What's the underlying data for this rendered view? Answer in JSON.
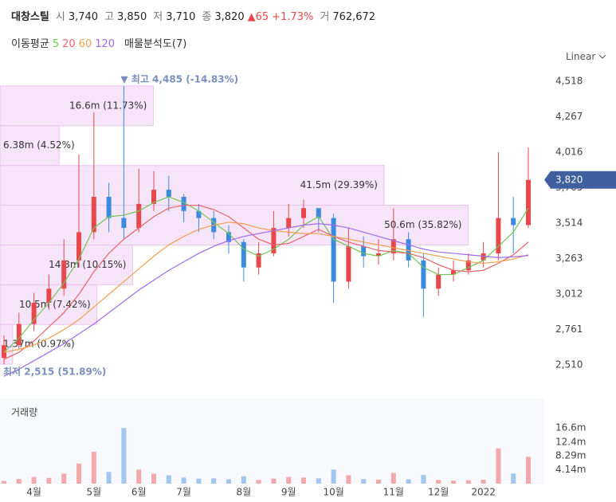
{
  "header": {
    "name": "대창스틸",
    "open_label": "시",
    "open": "3,740",
    "high_label": "고",
    "high": "3,850",
    "low_label": "저",
    "low": "3,710",
    "close_label": "종",
    "close": "3,820",
    "change": "▲65",
    "change_pct": "+1.73%",
    "volume_label": "거",
    "volume": "762,672",
    "ma_label": "이동평균",
    "profile_label": "매물분석도(7)",
    "scale": "Linear"
  },
  "chart_data": {
    "type": "candlestick",
    "categories": [
      null,
      null,
      "4월",
      null,
      null,
      null,
      "5월",
      null,
      null,
      "6월",
      null,
      null,
      "7월",
      null,
      null,
      null,
      "8월",
      null,
      null,
      "9월",
      null,
      null,
      "10월",
      null,
      null,
      null,
      "11월",
      null,
      null,
      "12월",
      null,
      null,
      "2022",
      null,
      null,
      null
    ],
    "open": [
      2560,
      2650,
      2800,
      2950,
      3050,
      3250,
      3450,
      3700,
      3550,
      3480,
      3650,
      3750,
      3700,
      3600,
      3550,
      3450,
      3380,
      3200,
      3300,
      3480,
      3550,
      3620,
      3550,
      3100,
      3350,
      3280,
      3300,
      3400,
      3250,
      3050,
      3150,
      3180,
      3250,
      3300,
      3550,
      3500
    ],
    "high": [
      2720,
      2880,
      3020,
      3150,
      3400,
      4000,
      4300,
      3800,
      4485,
      3900,
      3880,
      3850,
      3720,
      3650,
      3600,
      3500,
      3400,
      3380,
      3600,
      3650,
      3680,
      3620,
      3580,
      3480,
      3420,
      3400,
      3620,
      3450,
      3300,
      3200,
      3250,
      3300,
      3380,
      4016,
      3700,
      4050
    ],
    "low": [
      2515,
      2620,
      2750,
      2900,
      3000,
      3200,
      3400,
      3450,
      3400,
      3450,
      3600,
      3600,
      3520,
      3450,
      3400,
      3300,
      3100,
      3150,
      3280,
      3420,
      3480,
      3450,
      2950,
      3050,
      3200,
      3220,
      3250,
      3200,
      2850,
      3000,
      3100,
      3150,
      3200,
      3250,
      3300,
      3480
    ],
    "close": [
      2650,
      2800,
      2950,
      3050,
      3250,
      3450,
      3700,
      3550,
      3480,
      3650,
      3750,
      3700,
      3600,
      3550,
      3450,
      3380,
      3200,
      3300,
      3480,
      3550,
      3620,
      3550,
      3100,
      3350,
      3280,
      3300,
      3400,
      3250,
      3050,
      3150,
      3180,
      3250,
      3300,
      3550,
      3500,
      3820
    ],
    "volume": [
      800000,
      1400000,
      2000000,
      1700000,
      3000000,
      6000000,
      9500000,
      3500000,
      16600000,
      4200000,
      3000000,
      2500000,
      1800000,
      1500000,
      1600000,
      1300000,
      2200000,
      1100000,
      1500000,
      2000000,
      1800000,
      1600000,
      4200000,
      2500000,
      1400000,
      1200000,
      3200000,
      1300000,
      2600000,
      1100000,
      900000,
      1000000,
      1200000,
      10500000,
      3000000,
      8000000
    ],
    "up_color": "#e8474c",
    "down_color": "#3a8ae0",
    "series": [
      {
        "name": "5",
        "color": "#72c554",
        "values": [
          2600,
          2700,
          2830,
          2950,
          3090,
          3260,
          3480,
          3560,
          3570,
          3600,
          3660,
          3700,
          3660,
          3600,
          3520,
          3440,
          3330,
          3280,
          3330,
          3400,
          3500,
          3560,
          3400,
          3350,
          3300,
          3280,
          3320,
          3300,
          3200,
          3150,
          3150,
          3200,
          3250,
          3350,
          3450,
          3620
        ]
      },
      {
        "name": "20",
        "color": "#e8646a",
        "values": [
          2550,
          2600,
          2680,
          2780,
          2880,
          3010,
          3170,
          3300,
          3400,
          3480,
          3560,
          3620,
          3640,
          3640,
          3610,
          3560,
          3480,
          3400,
          3360,
          3370,
          3420,
          3470,
          3420,
          3380,
          3350,
          3320,
          3310,
          3300,
          3270,
          3220,
          3180,
          3170,
          3180,
          3230,
          3290,
          3380
        ]
      },
      {
        "name": "60",
        "color": "#f0a050",
        "values": [
          2600,
          2620,
          2650,
          2700,
          2760,
          2830,
          2920,
          3010,
          3100,
          3190,
          3280,
          3360,
          3420,
          3470,
          3500,
          3520,
          3510,
          3480,
          3460,
          3450,
          3440,
          3440,
          3420,
          3400,
          3380,
          3360,
          3340,
          3320,
          3300,
          3280,
          3260,
          3240,
          3230,
          3240,
          3260,
          3290
        ]
      },
      {
        "name": "120",
        "color": "#a06cf0",
        "values": [
          2430,
          2480,
          2540,
          2600,
          2660,
          2730,
          2800,
          2880,
          2960,
          3040,
          3110,
          3180,
          3240,
          3300,
          3350,
          3390,
          3420,
          3440,
          3460,
          3480,
          3500,
          3510,
          3500,
          3480,
          3450,
          3420,
          3390,
          3360,
          3330,
          3310,
          3300,
          3290,
          3280,
          3270,
          3275,
          3285
        ]
      }
    ],
    "ylim": [
      2386,
      4597
    ],
    "yticks": [
      {
        "value": 2510,
        "label": "2,510"
      },
      {
        "value": 2761,
        "label": "2,761"
      },
      {
        "value": 3012,
        "label": "3,012"
      },
      {
        "value": 3263,
        "label": "3,263"
      },
      {
        "value": 3514,
        "label": "3,514"
      },
      {
        "value": 3765,
        "label": "3,765"
      },
      {
        "value": 4016,
        "label": "4,016"
      },
      {
        "value": 4267,
        "label": "4,267"
      },
      {
        "value": 4518,
        "label": "4,518"
      }
    ],
    "last_price": {
      "value": 3820,
      "label": "3,820"
    },
    "max_marker": {
      "value": 4485,
      "label": "▼ 최고 4,485 (-14.83%)"
    },
    "min_marker": {
      "value": 2515,
      "label": "최저 2,515 (51.89%)"
    },
    "profile": [
      {
        "value": 11.73,
        "label": "16.6m (11.73%)"
      },
      {
        "value": 4.52,
        "label": "6.38m (4.52%)"
      },
      {
        "value": 29.39,
        "label": "41.5m (29.39%)"
      },
      {
        "value": 35.82,
        "label": "50.6m (35.82%)"
      },
      {
        "value": 10.15,
        "label": "14.3m (10.15%)"
      },
      {
        "value": 7.42,
        "label": "10.5m (7.42%)"
      },
      {
        "value": 0.97,
        "label": "1.37m (0.97%)"
      }
    ],
    "volume_title": "거래량",
    "volume_ylim": [
      0,
      25400000
    ],
    "volume_ticks": [
      {
        "value": 4140000,
        "label": "4.14m"
      },
      {
        "value": 8290000,
        "label": "8.29m"
      },
      {
        "value": 12400000,
        "label": "12.4m"
      },
      {
        "value": 16600000,
        "label": "16.6m"
      }
    ]
  }
}
